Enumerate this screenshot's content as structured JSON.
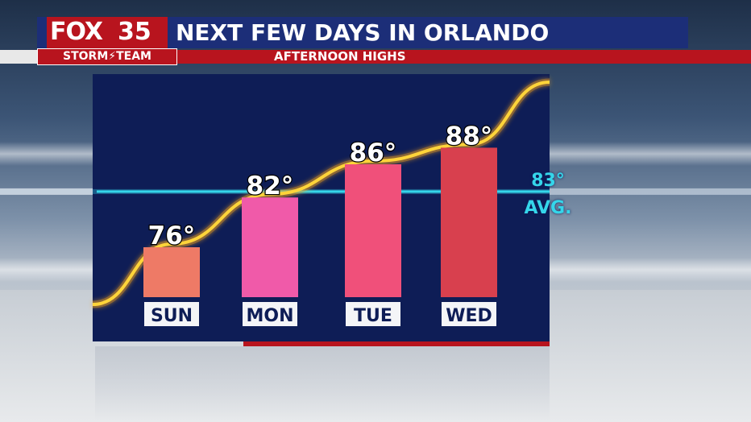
{
  "header": {
    "logo_fox": "FOX",
    "logo_number": "35",
    "title": "NEXT FEW DAYS IN ORLANDO",
    "storm_team": "STORM⚡TEAM",
    "subtitle": "AFTERNOON HIGHS"
  },
  "average": {
    "value_label": "83°",
    "label": "AVG."
  },
  "colors": {
    "panel": "#0e1d56",
    "brand_red": "#b8141e",
    "header_blue": "#1c2e78",
    "avg_line": "#35d6ea",
    "trend_line": "#ffd43a",
    "bars": [
      "#ee7a66",
      "#f05aa9",
      "#f0507a",
      "#d8404e"
    ]
  },
  "chart_data": {
    "type": "bar",
    "title": "AFTERNOON HIGHS",
    "categories": [
      "SUN",
      "MON",
      "TUE",
      "WED"
    ],
    "values": [
      76,
      82,
      86,
      88
    ],
    "value_labels": [
      "76°",
      "82°",
      "86°",
      "88°"
    ],
    "average": 83,
    "ylim": [
      70,
      92
    ],
    "grid": false,
    "legend": "none"
  }
}
